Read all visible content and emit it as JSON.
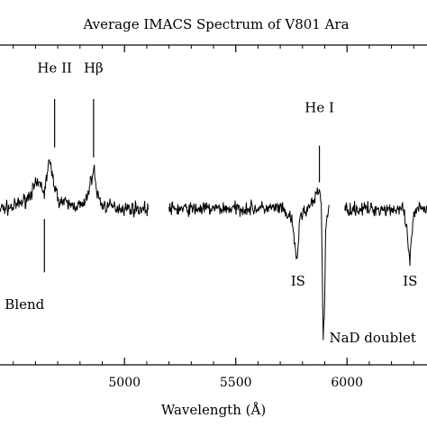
{
  "chart_data": {
    "type": "line",
    "title": "Average IMACS Spectrum of V801 Ara",
    "xlabel": "Wavelength (Å)",
    "ylabel": "",
    "xlim": [
      4400,
      6400
    ],
    "xticks": [
      5000,
      5500,
      6000
    ],
    "xtick_labels": [
      "5000",
      "5500",
      "6000"
    ],
    "grid": false,
    "line_color": "#000000",
    "spectrum_segments": [
      {
        "x_range": [
          4400,
          5110
        ],
        "profile": [
          [
            4400,
            0.0
          ],
          [
            4500,
            0.05
          ],
          [
            4560,
            0.3
          ],
          [
            4600,
            0.7
          ],
          [
            4625,
            0.75
          ],
          [
            4640,
            0.45
          ],
          [
            4660,
            1.45
          ],
          [
            4680,
            0.9
          ],
          [
            4700,
            0.3
          ],
          [
            4750,
            0.12
          ],
          [
            4820,
            0.1
          ],
          [
            4850,
            0.85
          ],
          [
            4862,
            1.25
          ],
          [
            4875,
            0.5
          ],
          [
            4900,
            0.1
          ],
          [
            5000,
            0.02
          ],
          [
            5110,
            0.0
          ]
        ],
        "noise": 0.18
      },
      {
        "x_range": [
          5200,
          5920
        ],
        "profile": [
          [
            5200,
            0.0
          ],
          [
            5700,
            0.02
          ],
          [
            5750,
            -0.3
          ],
          [
            5775,
            -1.55
          ],
          [
            5790,
            -0.2
          ],
          [
            5850,
            0.2
          ],
          [
            5875,
            0.6
          ],
          [
            5885,
            0.15
          ],
          [
            5893,
            -3.9
          ],
          [
            5898,
            -3.3
          ],
          [
            5905,
            -0.4
          ],
          [
            5920,
            0.0
          ]
        ],
        "noise": 0.18
      },
      {
        "x_range": [
          5990,
          6400
        ],
        "profile": [
          [
            5990,
            0.0
          ],
          [
            6250,
            0.0
          ],
          [
            6268,
            -0.6
          ],
          [
            6283,
            -1.65
          ],
          [
            6296,
            -0.3
          ],
          [
            6320,
            0.0
          ],
          [
            6400,
            0.05
          ]
        ],
        "noise": 0.18
      }
    ],
    "annotations": [
      {
        "text": "He II",
        "x": 4686,
        "y_line_top": 3.3,
        "y_line_bottom": 1.85,
        "text_y": 4.1,
        "anchor": "middle"
      },
      {
        "text": "Hβ",
        "x": 4861,
        "y_line_top": 3.3,
        "y_line_bottom": 1.55,
        "text_y": 4.1,
        "anchor": "middle"
      },
      {
        "text": "He I",
        "x": 5876,
        "y_line_top": 1.9,
        "y_line_bottom": 0.8,
        "text_y": 2.9,
        "anchor": "middle"
      },
      {
        "text": "IS",
        "x": 5780,
        "y_line_top": null,
        "y_line_bottom": null,
        "text_y": -2.3,
        "anchor": "middle"
      },
      {
        "text": "IS",
        "x": 6284,
        "y_line_top": null,
        "y_line_bottom": null,
        "text_y": -2.3,
        "anchor": "middle"
      },
      {
        "text": "NaD doublet",
        "x": 5920,
        "y_line_top": null,
        "y_line_bottom": null,
        "text_y": -4.0,
        "anchor": "start"
      },
      {
        "text": "Bowen Blend",
        "x": 4640,
        "y_line_top": -0.3,
        "y_line_bottom": -1.9,
        "text_y": -3.0,
        "anchor": "end"
      }
    ]
  }
}
